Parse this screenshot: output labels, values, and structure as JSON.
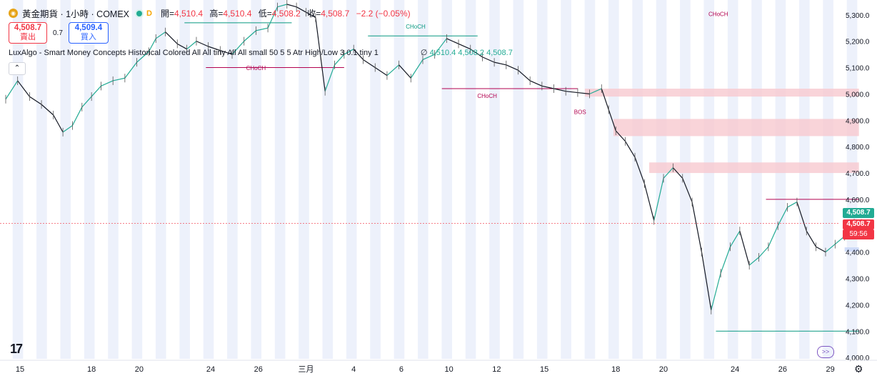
{
  "header": {
    "symbol_title": "黃金期貨 · 1小時 · COMEX",
    "interval_badge": "D",
    "open_label": "開=",
    "open_value": "4,510.4",
    "high_label": "高=",
    "high_value": "4,510.4",
    "low_label": "低=",
    "low_value": "4,508.2",
    "close_label": "收=",
    "close_value": "4,508.7",
    "change": "−2.2 (−0.05%)",
    "coin_glyph": "◉"
  },
  "trade": {
    "sell_price": "4,508.7",
    "sell_label": "賣出",
    "spread": "0.7",
    "buy_price": "4,509.4",
    "buy_label": "買入"
  },
  "indicator": {
    "name": "LuxAlgo - Smart Money Concepts Historical Colored All All tiny All All small 50 5 5 Atr High/Low 3 0.1 tiny 1",
    "values_prefix": "∅",
    "v1": "4,510.4",
    "v2": "4,508.2",
    "v3": "4,508.7",
    "collapse_glyph": "⌃"
  },
  "icons": {
    "logo": "tradingview-logo",
    "replay": "replay-icon",
    "settings": "gear-icon"
  },
  "price_tags": {
    "last_price": "4,508.7",
    "current_price": "4,508.7",
    "countdown": "59:56"
  },
  "colors": {
    "up": "#22ab94",
    "down": "#f23645",
    "bull_structure": "#089981",
    "bear_structure": "#b2004f",
    "session_band": "#edf1fb",
    "supply_zone": "#f7c9cf",
    "demand_zone": "#c7d6f7"
  },
  "chart_data": {
    "type": "line",
    "title": "",
    "price_axis_ticks": [
      5300,
      5200,
      5100,
      5000,
      4900,
      4800,
      4700,
      4600,
      4500,
      4400,
      4300,
      4200,
      4100,
      4000
    ],
    "price_axis_labels": [
      "5,300.0",
      "5,200.0",
      "5,100.0",
      "5,000.0",
      "4,900.0",
      "4,800.0",
      "4,700.0",
      "4,600.0",
      "4,500.0",
      "4,400.0",
      "4,300.0",
      "4,200.0",
      "4,100.0",
      "4,000.0"
    ],
    "ylim": [
      3995,
      5340
    ],
    "x_ticks": [
      "15",
      "18",
      "20",
      "24",
      "26",
      "三月",
      "4",
      "6",
      "10",
      "12",
      "15",
      "18",
      "20",
      "24",
      "26",
      "29"
    ],
    "x_tick_index": [
      0,
      3,
      5,
      8,
      10,
      12,
      14,
      16,
      18,
      20,
      22,
      25,
      27,
      30,
      32,
      34
    ],
    "xlim": [
      0,
      35
    ],
    "series": [
      {
        "values": [
          [
            0,
            4980
          ],
          [
            0.5,
            5050
          ],
          [
            1,
            4990
          ],
          [
            1.5,
            4960
          ],
          [
            2,
            4920
          ],
          [
            2.4,
            4855
          ],
          [
            2.8,
            4880
          ],
          [
            3.2,
            4950
          ],
          [
            3.6,
            4990
          ],
          [
            4,
            5030
          ],
          [
            4.5,
            5050
          ],
          [
            5,
            5060
          ],
          [
            5.5,
            5120
          ],
          [
            6,
            5160
          ],
          [
            6.3,
            5210
          ],
          [
            6.7,
            5235
          ],
          [
            7.2,
            5190
          ],
          [
            7.6,
            5170
          ],
          [
            8,
            5200
          ],
          [
            8.5,
            5180
          ],
          [
            9,
            5165
          ],
          [
            9.5,
            5150
          ],
          [
            10,
            5200
          ],
          [
            10.5,
            5240
          ],
          [
            11,
            5250
          ],
          [
            11.4,
            5330
          ],
          [
            11.8,
            5340
          ],
          [
            12.2,
            5330
          ],
          [
            12.6,
            5310
          ],
          [
            13,
            5290
          ],
          [
            13.4,
            5010
          ],
          [
            13.8,
            5110
          ],
          [
            14.2,
            5150
          ],
          [
            14.6,
            5170
          ],
          [
            15,
            5130
          ],
          [
            15.5,
            5100
          ],
          [
            16,
            5070
          ],
          [
            16.5,
            5110
          ],
          [
            17,
            5060
          ],
          [
            17.5,
            5130
          ],
          [
            18,
            5150
          ],
          [
            18.5,
            5210
          ],
          [
            19,
            5190
          ],
          [
            19.5,
            5170
          ],
          [
            20,
            5140
          ],
          [
            20.5,
            5120
          ],
          [
            21,
            5110
          ],
          [
            21.5,
            5090
          ],
          [
            22,
            5050
          ],
          [
            22.5,
            5030
          ],
          [
            23,
            5020
          ],
          [
            23.5,
            5010
          ],
          [
            24,
            5005
          ],
          [
            24.5,
            5000
          ],
          [
            25,
            5020
          ],
          [
            25.3,
            4940
          ],
          [
            25.6,
            4860
          ],
          [
            26,
            4820
          ],
          [
            26.4,
            4760
          ],
          [
            26.8,
            4660
          ],
          [
            27.2,
            4520
          ],
          [
            27.6,
            4680
          ],
          [
            28,
            4720
          ],
          [
            28.4,
            4680
          ],
          [
            28.8,
            4590
          ],
          [
            29.2,
            4400
          ],
          [
            29.6,
            4180
          ],
          [
            30,
            4320
          ],
          [
            30.4,
            4420
          ],
          [
            30.8,
            4480
          ],
          [
            31.2,
            4350
          ],
          [
            31.6,
            4380
          ],
          [
            32,
            4420
          ],
          [
            32.4,
            4500
          ],
          [
            32.8,
            4570
          ],
          [
            33.2,
            4590
          ],
          [
            33.6,
            4480
          ],
          [
            34,
            4420
          ],
          [
            34.4,
            4400
          ],
          [
            34.8,
            4430
          ],
          [
            35.2,
            4460
          ],
          [
            35.6,
            4510
          ],
          [
            35.9,
            4508.7
          ]
        ]
      }
    ],
    "grid": false,
    "structure_labels": [
      {
        "text": "CHoCH",
        "x": 17.2,
        "y": 5248,
        "kind": "bull"
      },
      {
        "text": "CHoCH",
        "x": 10.5,
        "y": 5090,
        "kind": "bear"
      },
      {
        "text": "CHoCH",
        "x": 20.2,
        "y": 4985,
        "kind": "bear"
      },
      {
        "text": "BOS",
        "x": 24.1,
        "y": 4924,
        "kind": "bear"
      },
      {
        "text": "CHoCH",
        "x": 29.9,
        "y": 5295,
        "kind": "bear"
      }
    ],
    "zones": [
      {
        "from": 24.3,
        "to": 35.8,
        "top": 5020,
        "bottom": 4990,
        "kind": "supply"
      },
      {
        "from": 25.5,
        "to": 35.8,
        "top": 4905,
        "bottom": 4840,
        "kind": "supply"
      },
      {
        "from": 27.0,
        "to": 35.8,
        "top": 4740,
        "bottom": 4700,
        "kind": "supply"
      },
      {
        "from": 35.2,
        "to": 35.8,
        "top": 4418,
        "bottom": 4402,
        "kind": "demand"
      }
    ],
    "levels": [
      {
        "price": 5270,
        "from": 7.5,
        "to": 12.0,
        "kind": "bull"
      },
      {
        "price": 5100,
        "from": 8.4,
        "to": 14.2,
        "kind": "bear"
      },
      {
        "price": 5220,
        "from": 15.2,
        "to": 19.8,
        "kind": "bull"
      },
      {
        "price": 5020,
        "from": 18.3,
        "to": 24.0,
        "kind": "bear"
      },
      {
        "price": 4600,
        "from": 31.9,
        "to": 35.8,
        "kind": "bear"
      },
      {
        "price": 4100,
        "from": 29.8,
        "to": 35.8,
        "kind": "bull"
      }
    ]
  }
}
